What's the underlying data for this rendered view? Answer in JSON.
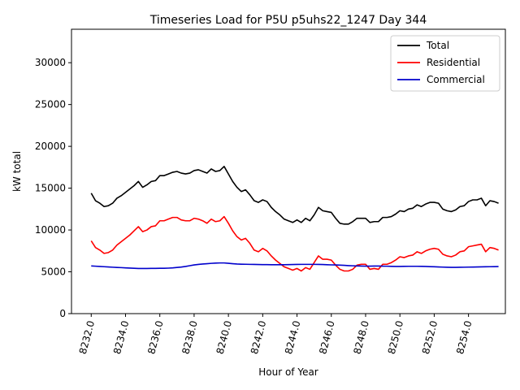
{
  "chart_data": {
    "type": "line",
    "title": "Timeseries Load for P5U p5uhs22_1247  Day 344",
    "xlabel": "Hour of Year",
    "ylabel": "kW total",
    "xlim": [
      8230.85,
      8256.15
    ],
    "ylim": [
      0,
      34000
    ],
    "xticks": [
      8232,
      8234,
      8236,
      8238,
      8240,
      8242,
      8244,
      8246,
      8248,
      8250,
      8252,
      8254
    ],
    "xtick_labels": [
      "8232.0",
      "8234.0",
      "8236.0",
      "8238.0",
      "8240.0",
      "8242.0",
      "8244.0",
      "8246.0",
      "8248.0",
      "8250.0",
      "8252.0",
      "8254.0"
    ],
    "yticks": [
      0,
      5000,
      10000,
      15000,
      20000,
      25000,
      30000
    ],
    "ytick_labels": [
      "0",
      "5000",
      "10000",
      "15000",
      "20000",
      "25000",
      "30000"
    ],
    "grid": false,
    "legend_position": "top-right",
    "x_start": 8232,
    "x_step": 0.25,
    "series": [
      {
        "name": "Total",
        "color": "#000000",
        "values": [
          14400,
          13500,
          13200,
          12800,
          12900,
          13200,
          13800,
          14100,
          14500,
          14900,
          15300,
          15800,
          15100,
          15400,
          15800,
          15900,
          16500,
          16500,
          16700,
          16900,
          17000,
          16800,
          16700,
          16800,
          17100,
          17200,
          17000,
          16800,
          17300,
          17000,
          17100,
          17600,
          16700,
          15800,
          15100,
          14600,
          14800,
          14200,
          13500,
          13300,
          13600,
          13400,
          12700,
          12200,
          11800,
          11300,
          11100,
          10900,
          11200,
          10900,
          11400,
          11100,
          11800,
          12700,
          12300,
          12200,
          12100,
          11400,
          10800,
          10700,
          10700,
          11000,
          11400,
          11400,
          11400,
          10900,
          11000,
          11000,
          11500,
          11500,
          11600,
          11900,
          12300,
          12200,
          12500,
          12600,
          13000,
          12800,
          13100,
          13300,
          13300,
          13200,
          12500,
          12300,
          12200,
          12400,
          12800,
          12900,
          13400,
          13600,
          13600,
          13800,
          12900,
          13500,
          13400,
          13200
        ]
      },
      {
        "name": "Residential",
        "color": "#ff0000",
        "values": [
          8700,
          7900,
          7600,
          7200,
          7300,
          7600,
          8200,
          8600,
          9000,
          9400,
          9900,
          10400,
          9800,
          10000,
          10400,
          10500,
          11100,
          11100,
          11300,
          11500,
          11500,
          11200,
          11100,
          11100,
          11400,
          11300,
          11100,
          10800,
          11300,
          11000,
          11100,
          11600,
          10800,
          9900,
          9200,
          8800,
          9000,
          8400,
          7600,
          7400,
          7800,
          7500,
          6900,
          6400,
          6000,
          5600,
          5400,
          5200,
          5400,
          5100,
          5500,
          5300,
          6100,
          6900,
          6500,
          6500,
          6400,
          5800,
          5300,
          5100,
          5100,
          5300,
          5800,
          5900,
          5900,
          5300,
          5400,
          5300,
          5900,
          5900,
          6100,
          6400,
          6800,
          6700,
          6900,
          7000,
          7400,
          7200,
          7500,
          7700,
          7800,
          7700,
          7100,
          6900,
          6800,
          7000,
          7400,
          7500,
          8000,
          8100,
          8200,
          8300,
          7400,
          7900,
          7800,
          7600
        ]
      },
      {
        "name": "Commercial",
        "color": "#0000cc",
        "values": [
          5700,
          5670,
          5640,
          5610,
          5580,
          5550,
          5520,
          5500,
          5470,
          5450,
          5420,
          5400,
          5400,
          5400,
          5410,
          5410,
          5420,
          5420,
          5440,
          5470,
          5520,
          5570,
          5640,
          5730,
          5820,
          5880,
          5930,
          5970,
          6010,
          6040,
          6060,
          6060,
          6020,
          5970,
          5930,
          5910,
          5900,
          5890,
          5880,
          5870,
          5860,
          5860,
          5850,
          5850,
          5850,
          5850,
          5860,
          5870,
          5880,
          5890,
          5890,
          5890,
          5890,
          5880,
          5870,
          5850,
          5830,
          5820,
          5800,
          5770,
          5740,
          5720,
          5700,
          5690,
          5680,
          5680,
          5690,
          5690,
          5680,
          5670,
          5650,
          5640,
          5640,
          5650,
          5660,
          5660,
          5660,
          5650,
          5640,
          5620,
          5600,
          5580,
          5560,
          5540,
          5530,
          5530,
          5540,
          5550,
          5560,
          5570,
          5580,
          5590,
          5600,
          5610,
          5620,
          5630
        ]
      }
    ]
  }
}
